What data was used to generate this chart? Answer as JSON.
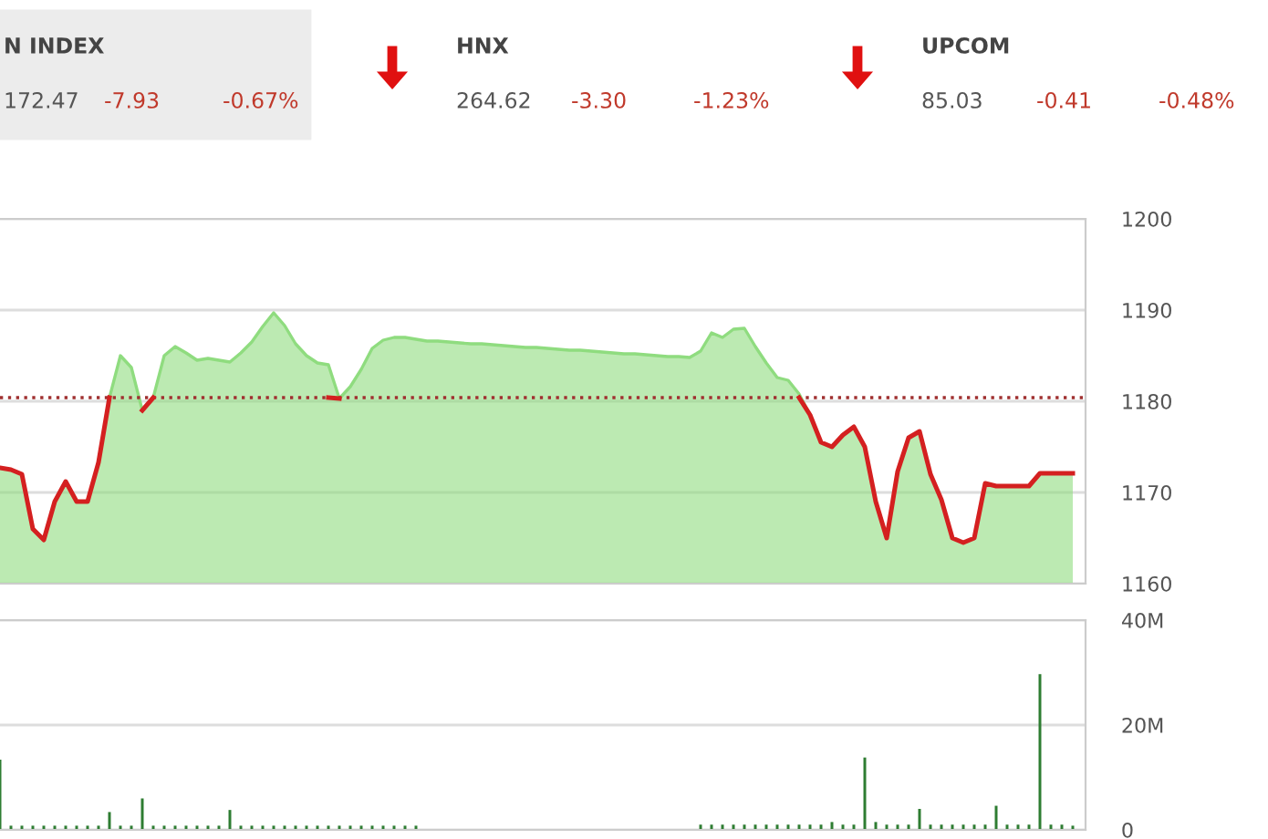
{
  "chart_data": [
    {
      "type": "other",
      "annotations": [
        "N INDEX",
        "172.47",
        "-7.93",
        "-0.67%",
        "HNX",
        "264.62",
        "-3.30",
        "-1.23%",
        "UPCOM",
        "85.03",
        "-0.41",
        "-0.48%"
      ]
    },
    {
      "type": "area",
      "categories": [
        null,
        null,
        null,
        null,
        null,
        null,
        null,
        null,
        null,
        null,
        null,
        null,
        null,
        null,
        null,
        null,
        null,
        null,
        null,
        null,
        null,
        null,
        null,
        null,
        null,
        null,
        null,
        null,
        null,
        null,
        null,
        null,
        null,
        null,
        null,
        null,
        null,
        null,
        null,
        null,
        null,
        null,
        null,
        null,
        null,
        null,
        null,
        null,
        null,
        null,
        null,
        null,
        null,
        null,
        null,
        null,
        null,
        null,
        null,
        null,
        null,
        null,
        null,
        null,
        null,
        null,
        null,
        null,
        null,
        null,
        null,
        null,
        null,
        null,
        null,
        null,
        null,
        null,
        null,
        null,
        null,
        null,
        null,
        null,
        null,
        null,
        null,
        null,
        null,
        null,
        null,
        null,
        null,
        null,
        null,
        null,
        null,
        null,
        null
      ],
      "series": [
        {
          "type": "area",
          "color": "#8fdc7f",
          "values": [
            1172.7,
            1172.5,
            1172,
            1166,
            1164.8,
            1169,
            1171.2,
            1169,
            1169,
            1173.3,
            1180.4,
            1185,
            1183.7,
            1179,
            1180.4,
            1185,
            1186,
            1185.3,
            1184.5,
            1184.7,
            1184.5,
            1184.3,
            1185.3,
            1186.5,
            1188.2,
            1189.7,
            1188.3,
            1186.3,
            1185,
            1184.2,
            1184,
            1180.3,
            1181.6,
            1183.5,
            1185.8,
            1186.7,
            1187,
            1187,
            1186.8,
            1186.6,
            1186.6,
            1186.5,
            1186.4,
            1186.3,
            1186.3,
            1186.2,
            1186.1,
            1186,
            1185.9,
            1185.9,
            1185.8,
            1185.7,
            1185.6,
            1185.6,
            1185.5,
            1185.4,
            1185.3,
            1185.2,
            1185.2,
            1185.1,
            1185,
            1184.9,
            1184.9,
            1184.8,
            1185.5,
            1187.5,
            1187,
            1187.9,
            1188,
            1186,
            1184.2,
            1182.6,
            1182.3,
            1180.8,
            1178.5,
            1175.5,
            1175,
            1176.3,
            1177.2,
            1175,
            1169,
            1165,
            1172.3,
            1176,
            1176.7,
            1172,
            1169.2,
            1165,
            1164.5,
            1165,
            1171,
            1170.7,
            1170.7,
            1170.7,
            1170.7,
            1172.1,
            1172.1,
            1172.1,
            1172.1
          ]
        },
        {
          "type": "line",
          "color": "#d42020",
          "values": [
            1172.7,
            1172.5,
            1172,
            1166,
            1164.8,
            1169,
            1171.2,
            1169,
            1169,
            1173.3,
            1180.4,
            null,
            null,
            1179,
            1180.4,
            null,
            null,
            null,
            null,
            null,
            null,
            null,
            null,
            null,
            null,
            null,
            null,
            null,
            null,
            null,
            1180.4,
            1180.3,
            null,
            null,
            null,
            null,
            null,
            null,
            null,
            null,
            null,
            null,
            null,
            null,
            null,
            null,
            null,
            null,
            null,
            null,
            null,
            null,
            null,
            null,
            null,
            null,
            null,
            null,
            null,
            null,
            null,
            null,
            null,
            null,
            null,
            null,
            null,
            null,
            null,
            null,
            null,
            null,
            null,
            1180.4,
            1178.5,
            1175.5,
            1175,
            1176.3,
            1177.2,
            1175,
            1169,
            1165,
            1172.3,
            1176,
            1176.7,
            1172,
            1169.2,
            1165,
            1164.5,
            1165,
            1171,
            1170.7,
            1170.7,
            1170.7,
            1170.7,
            1172.1,
            1172.1,
            1172.1,
            1172.1
          ]
        }
      ],
      "ylim": [
        1160,
        1200
      ],
      "yticks": [
        1160,
        1170,
        1180,
        1190,
        1200
      ],
      "grid": "y",
      "ref_lines": [
        {
          "axis": "y",
          "value": 1180.4,
          "color": "#a03030",
          "line_style": "dotted"
        }
      ]
    },
    {
      "type": "bar",
      "categories": [
        null,
        null,
        null,
        null,
        null,
        null,
        null,
        null,
        null,
        null,
        null,
        null,
        null,
        null,
        null,
        null,
        null,
        null,
        null,
        null,
        null,
        null,
        null,
        null,
        null,
        null,
        null,
        null,
        null,
        null,
        null,
        null,
        null,
        null,
        null,
        null,
        null,
        null,
        null,
        null,
        null,
        null,
        null,
        null,
        null,
        null,
        null,
        null,
        null,
        null,
        null,
        null,
        null,
        null,
        null,
        null,
        null,
        null,
        null,
        null,
        null,
        null,
        null,
        null,
        null,
        null,
        null,
        null,
        null,
        null,
        null,
        null,
        null,
        null,
        null,
        null,
        null,
        null,
        null,
        null,
        null,
        null,
        null,
        null,
        null,
        null,
        null,
        null,
        null,
        null,
        null,
        null,
        null,
        null,
        null,
        null,
        null,
        null,
        null
      ],
      "series": [
        {
          "color": "#2e7d32",
          "values": [
            13.4,
            0.8,
            0.8,
            0.8,
            0.8,
            0.8,
            0.8,
            0.8,
            0.8,
            0.8,
            3.4,
            0.8,
            0.8,
            6,
            0.8,
            0.8,
            0.8,
            0.8,
            0.8,
            0.8,
            0.8,
            3.8,
            0.8,
            0.8,
            0.8,
            0.8,
            0.8,
            0.8,
            0.8,
            0.8,
            0.8,
            0.8,
            0.8,
            0.8,
            0.8,
            0.8,
            0.8,
            0.8,
            0.8,
            0,
            0,
            0,
            0,
            0,
            0,
            0,
            0,
            0,
            0,
            0,
            0,
            0,
            0,
            0,
            0,
            0,
            0,
            0,
            0,
            0,
            0,
            0,
            0,
            0,
            1,
            1,
            1,
            1,
            1,
            1,
            1,
            1,
            1,
            1,
            1,
            1,
            1.5,
            1,
            1,
            13.8,
            1.5,
            1,
            1,
            1,
            4,
            1,
            1,
            1,
            1,
            1,
            1,
            4.6,
            1,
            1,
            1,
            29.7,
            1,
            1,
            0.8
          ]
        }
      ],
      "ylim": [
        0,
        40
      ],
      "yticks": [
        0,
        {
          "value": 20,
          "label": "20M"
        },
        {
          "value": 40,
          "label": "40M"
        }
      ],
      "grid": "y"
    }
  ]
}
